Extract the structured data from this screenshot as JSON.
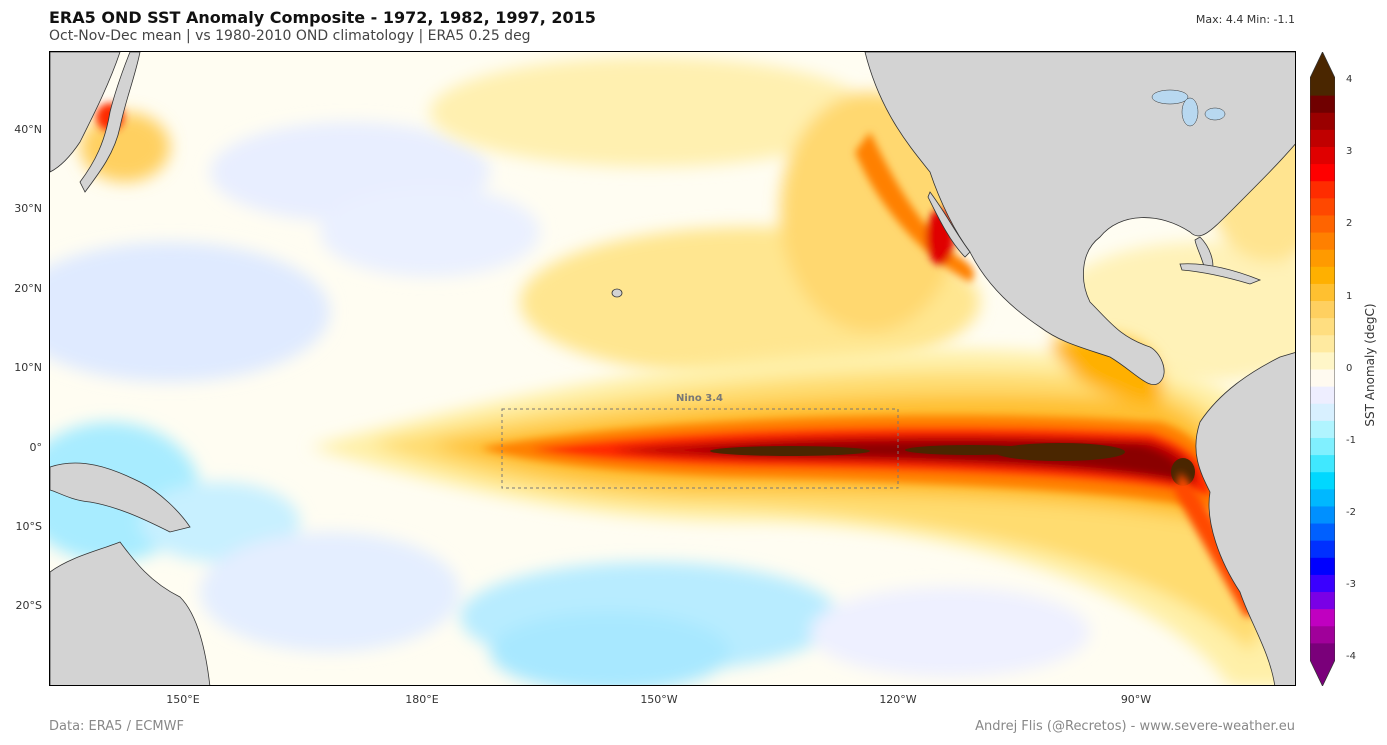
{
  "title": "ERA5 OND SST Anomaly Composite - 1972, 1982, 1997, 2015",
  "subtitle": "Oct-Nov-Dec mean  |  vs 1980-2010 OND climatology  |  ERA5 0.25 deg",
  "maxmin": "Max: 4.4  Min: -1.1",
  "lat_labels": [
    "40°N",
    "30°N",
    "20°N",
    "10°N",
    "0°",
    "10°S",
    "20°S"
  ],
  "lon_labels": [
    "150°E",
    "180°E",
    "150°W",
    "120°W",
    "90°W"
  ],
  "colorbar": {
    "label": "SST Anomaly (degC)",
    "ticks": [
      "4",
      "3",
      "2",
      "1",
      "0",
      "-1",
      "-2",
      "-3",
      "-4"
    ],
    "colors": [
      "#7a007a",
      "#a0009a",
      "#c000c0",
      "#7a00e6",
      "#3a00ff",
      "#0000ff",
      "#0030ff",
      "#0060ff",
      "#0090ff",
      "#00b8ff",
      "#00d8ff",
      "#40e8ff",
      "#80f0ff",
      "#b0f4ff",
      "#d8f0ff",
      "#eeeeff",
      "#fffaf0",
      "#fff6c8",
      "#ffeaa0",
      "#ffde80",
      "#ffd060",
      "#ffc030",
      "#ffb000",
      "#ff9a00",
      "#ff8000",
      "#ff6400",
      "#ff4800",
      "#ff2c00",
      "#ff0000",
      "#e00000",
      "#c00000",
      "#9a0000",
      "#700000",
      "#4a2600"
    ]
  },
  "nino_box_label": "Nino 3.4",
  "footer_left": "Data: ERA5 / ECMWF",
  "footer_right": "Andrej Flis (@Recretos) - www.severe-weather.eu",
  "colors": {
    "land": "#d3d3d3",
    "coast": "#333333",
    "max_anomaly": "#4a2600",
    "neutral": "#fffdf2",
    "cool": "#b8ecff"
  }
}
